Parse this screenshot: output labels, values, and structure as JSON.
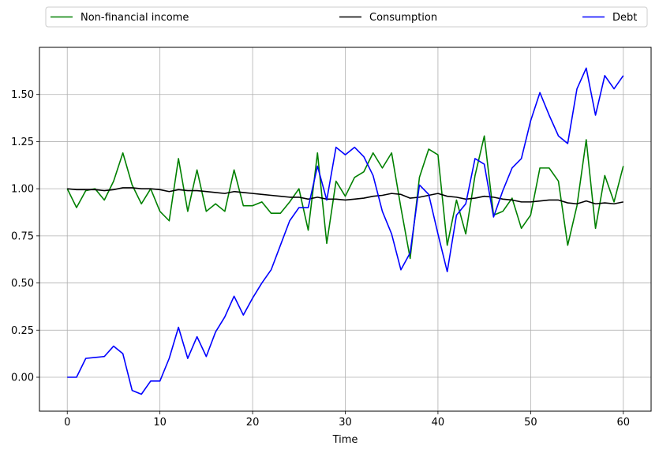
{
  "chart_data": {
    "type": "line",
    "xlabel": "Time",
    "ylabel": "",
    "xlim": [
      -3,
      63
    ],
    "ylim": [
      -0.18,
      1.75
    ],
    "xticks": [
      0,
      10,
      20,
      30,
      40,
      50,
      60
    ],
    "yticks": [
      0.0,
      0.25,
      0.5,
      0.75,
      1.0,
      1.25,
      1.5
    ],
    "ytick_labels": [
      "0.00",
      "0.25",
      "0.50",
      "0.75",
      "1.00",
      "1.25",
      "1.50"
    ],
    "grid": true,
    "legend_placement": "top-outside",
    "x": [
      0,
      1,
      2,
      3,
      4,
      5,
      6,
      7,
      8,
      9,
      10,
      11,
      12,
      13,
      14,
      15,
      16,
      17,
      18,
      19,
      20,
      21,
      22,
      23,
      24,
      25,
      26,
      27,
      28,
      29,
      30,
      31,
      32,
      33,
      34,
      35,
      36,
      37,
      38,
      39,
      40,
      41,
      42,
      43,
      44,
      45,
      46,
      47,
      48,
      49,
      50,
      51,
      52,
      53,
      54,
      55,
      56,
      57,
      58,
      59,
      60
    ],
    "series": [
      {
        "name": "Non-financial income",
        "color": "#008000",
        "values": [
          1.0,
          0.9,
          0.99,
          1.0,
          0.94,
          1.04,
          1.19,
          1.02,
          0.92,
          1.0,
          0.88,
          0.83,
          1.16,
          0.88,
          1.1,
          0.88,
          0.92,
          0.88,
          1.1,
          0.91,
          0.91,
          0.93,
          0.87,
          0.87,
          0.93,
          1.0,
          0.78,
          1.19,
          0.71,
          1.04,
          0.96,
          1.06,
          1.09,
          1.19,
          1.11,
          1.19,
          0.9,
          0.63,
          1.06,
          1.21,
          1.18,
          0.7,
          0.94,
          0.76,
          1.07,
          1.28,
          0.86,
          0.88,
          0.95,
          0.79,
          0.86,
          1.11,
          1.11,
          1.04,
          0.7,
          0.91,
          1.26,
          0.79,
          1.07,
          0.93,
          1.12
        ]
      },
      {
        "name": "Consumption",
        "color": "#000000",
        "values": [
          1.0,
          0.995,
          0.995,
          0.995,
          0.99,
          0.995,
          1.005,
          1.005,
          1.0,
          1.0,
          0.995,
          0.985,
          0.995,
          0.99,
          0.99,
          0.985,
          0.98,
          0.975,
          0.985,
          0.98,
          0.975,
          0.97,
          0.965,
          0.96,
          0.955,
          0.955,
          0.945,
          0.955,
          0.945,
          0.945,
          0.94,
          0.945,
          0.95,
          0.96,
          0.965,
          0.975,
          0.97,
          0.95,
          0.955,
          0.965,
          0.975,
          0.96,
          0.955,
          0.945,
          0.95,
          0.96,
          0.955,
          0.945,
          0.94,
          0.93,
          0.93,
          0.935,
          0.94,
          0.94,
          0.925,
          0.92,
          0.935,
          0.92,
          0.925,
          0.92,
          0.93
        ]
      },
      {
        "name": "Debt",
        "color": "#0000ff",
        "values": [
          0.0,
          0.0,
          0.1,
          0.105,
          0.11,
          0.165,
          0.125,
          -0.07,
          -0.09,
          -0.02,
          -0.02,
          0.1,
          0.265,
          0.1,
          0.215,
          0.11,
          0.24,
          0.32,
          0.43,
          0.33,
          0.42,
          0.5,
          0.57,
          0.7,
          0.83,
          0.9,
          0.9,
          1.12,
          0.94,
          1.22,
          1.18,
          1.22,
          1.17,
          1.07,
          0.88,
          0.76,
          0.57,
          0.66,
          1.02,
          0.97,
          0.76,
          0.56,
          0.86,
          0.92,
          1.16,
          1.13,
          0.85,
          0.99,
          1.11,
          1.16,
          1.36,
          1.51,
          1.39,
          1.28,
          1.24,
          1.53,
          1.64,
          1.39,
          1.6,
          1.53,
          1.6
        ]
      }
    ]
  }
}
